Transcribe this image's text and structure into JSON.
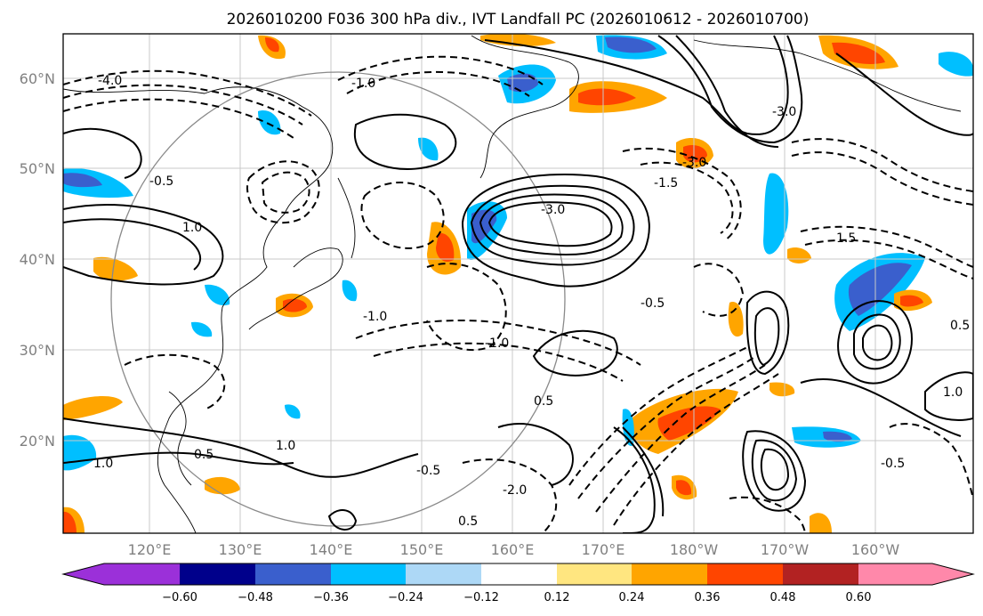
{
  "title": "2026010200 F036 300 hPa div., IVT Landfall PC (2026010612 - 2026010700)",
  "map": {
    "lat_ticks": [
      "60°N",
      "50°N",
      "40°N",
      "30°N",
      "20°N"
    ],
    "lon_ticks": [
      "120°E",
      "130°E",
      "140°E",
      "150°E",
      "160°E",
      "170°E",
      "180°W",
      "170°W",
      "160°W"
    ],
    "contour_labels": [
      "-3.0",
      "-3.0",
      "-1.5",
      "-0.5",
      "-0.5",
      "-1.0",
      "-0.5",
      "1.0",
      "1.5",
      "0.5",
      "0.5",
      "-2.0",
      "-3.0",
      "-1.0",
      "-4.0",
      "-1.0",
      "1.0",
      "0.5",
      "-0.5",
      "0.5",
      "1.0",
      "1.0"
    ]
  },
  "colorbar": {
    "colors": [
      "#9b30d9",
      "#00008b",
      "#3a5fcd",
      "#00bfff",
      "#add8f6",
      "#ffffff",
      "#ffe680",
      "#ffa500",
      "#ff4500",
      "#b22222",
      "#ff88aa"
    ],
    "tick_labels": [
      "−0.60",
      "−0.48",
      "−0.36",
      "−0.24",
      "−0.12",
      "0.12",
      "0.24",
      "0.36",
      "0.48",
      "0.60"
    ]
  }
}
